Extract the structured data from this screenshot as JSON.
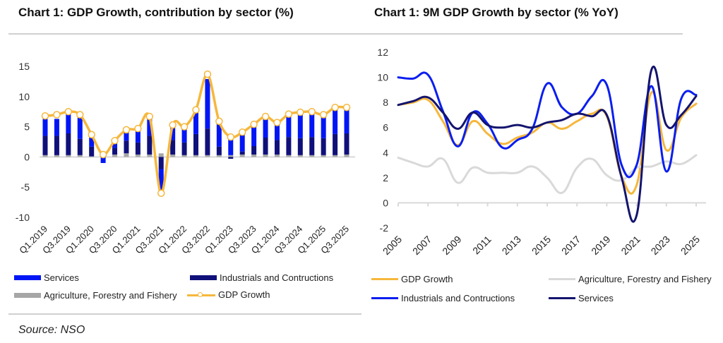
{
  "source": "Source: NSO",
  "chart_data": [
    {
      "type": "bar",
      "stacked": true,
      "title": "Chart 1: GDP Growth, contribution by sector (%)",
      "xlabel": "",
      "ylabel": "",
      "ylim": [
        -10,
        15
      ],
      "yticks": [
        15,
        10,
        5,
        0,
        -5,
        -10
      ],
      "grid": false,
      "legend_position": "bottom",
      "categories": [
        "Q1.2019",
        "Q2.2019",
        "Q3.2019",
        "Q4.2019",
        "Q1.2020",
        "Q2.2020",
        "Q3.2020",
        "Q4.2020",
        "Q1.2021",
        "Q2.2021",
        "Q3.2021",
        "Q4.2021",
        "Q1.2022",
        "Q2.2022",
        "Q3.2022",
        "Q4.2022",
        "Q1.2023",
        "Q2.2023",
        "Q3.2023",
        "Q4.2023",
        "Q1.2024",
        "Q2.2024",
        "Q3.2024",
        "Q4.2024",
        "Q1.2025",
        "Q2.2025",
        "Q3.2025"
      ],
      "tick_labels": [
        "Q1.2019",
        "Q3.2019",
        "Q1.2020",
        "Q3.2020",
        "Q1.2021",
        "Q3.2021",
        "Q1.2022",
        "Q3.2022",
        "Q1.2023",
        "Q3.2023",
        "Q1.2024",
        "Q3.2024",
        "Q1.2025",
        "Q3.2025"
      ],
      "series": [
        {
          "name": "Agriculture, Forestry and Fishery",
          "kind": "bar",
          "color": "#a6a6a6",
          "values": [
            0.3,
            0.3,
            0.3,
            0.3,
            0.1,
            0.2,
            0.4,
            0.6,
            0.4,
            0.4,
            0.6,
            0.4,
            0.3,
            0.3,
            0.3,
            0.3,
            0.3,
            0.4,
            0.4,
            0.4,
            0.4,
            0.3,
            0.3,
            0.3,
            0.3,
            0.3,
            0.4
          ]
        },
        {
          "name": "Industrials and Contructions",
          "kind": "bar",
          "color": "#10107a",
          "values": [
            3.2,
            3.2,
            3.6,
            2.7,
            1.6,
            0.4,
            1.1,
            2.1,
            2.0,
            3.1,
            -2.0,
            2.4,
            2.1,
            3.5,
            4.4,
            1.4,
            -0.3,
            0.5,
            1.4,
            2.8,
            2.4,
            3.0,
            2.8,
            3.0,
            2.8,
            3.5,
            3.5
          ]
        },
        {
          "name": "Services",
          "kind": "bar",
          "color": "#0016f5",
          "values": [
            2.8,
            2.8,
            3.2,
            3.5,
            1.5,
            -1.0,
            1.2,
            1.7,
            2.3,
            3.2,
            -4.0,
            2.5,
            2.6,
            4.0,
            8.2,
            4.0,
            3.4,
            3.3,
            3.4,
            3.7,
            3.2,
            3.5,
            4.1,
            4.0,
            3.6,
            4.1,
            3.9
          ]
        },
        {
          "name": "GDP Growth",
          "kind": "line",
          "color": "#f6b73c",
          "values": [
            6.8,
            7.0,
            7.5,
            7.0,
            3.7,
            0.4,
            2.7,
            4.5,
            4.7,
            6.7,
            -6.0,
            5.3,
            5.0,
            7.8,
            13.7,
            5.9,
            3.3,
            4.1,
            5.4,
            6.7,
            5.7,
            7.1,
            7.4,
            7.5,
            7.0,
            8.2,
            8.2
          ]
        }
      ]
    },
    {
      "type": "line",
      "title": "Chart 1: 9M GDP Growth by sector (% YoY)",
      "xlabel": "",
      "ylabel": "",
      "ylim": [
        -2,
        12
      ],
      "yticks": [
        12,
        10,
        8,
        6,
        4,
        2,
        0,
        -2
      ],
      "grid": false,
      "legend_position": "bottom",
      "x": [
        2005,
        2006,
        2007,
        2008,
        2009,
        2010,
        2011,
        2012,
        2013,
        2014,
        2015,
        2016,
        2017,
        2018,
        2019,
        2020,
        2021,
        2022,
        2023,
        2024,
        2025
      ],
      "tick_labels": [
        "2005",
        "2007",
        "2009",
        "2011",
        "2013",
        "2015",
        "2017",
        "2019",
        "2021",
        "2023",
        "2025"
      ],
      "series": [
        {
          "name": "GDP Growth",
          "color": "#f6b73c",
          "values": [
            7.8,
            8.0,
            8.2,
            6.5,
            4.6,
            6.5,
            5.5,
            4.7,
            5.2,
            5.6,
            6.4,
            5.9,
            6.5,
            7.1,
            6.9,
            2.1,
            1.4,
            8.8,
            4.2,
            6.8,
            7.9
          ]
        },
        {
          "name": "Agriculture, Forestry and Fishery",
          "color": "#d9d9d9",
          "values": [
            3.6,
            3.2,
            2.9,
            3.5,
            1.6,
            2.8,
            2.4,
            2.4,
            2.4,
            2.9,
            2.0,
            0.8,
            2.8,
            3.5,
            2.2,
            1.8,
            2.8,
            2.9,
            3.3,
            3.1,
            3.8
          ]
        },
        {
          "name": "Industrials and Contructions",
          "color": "#0a1ef0",
          "values": [
            10.0,
            9.9,
            10.2,
            7.3,
            4.5,
            7.2,
            6.3,
            4.4,
            5.0,
            5.9,
            9.5,
            7.6,
            7.1,
            8.5,
            9.4,
            3.0,
            3.0,
            9.3,
            2.5,
            8.3,
            8.6
          ]
        },
        {
          "name": "Services",
          "color": "#14146e",
          "values": [
            7.8,
            8.1,
            8.4,
            7.2,
            5.9,
            7.2,
            6.2,
            6.0,
            6.2,
            6.0,
            6.4,
            6.6,
            7.1,
            6.9,
            7.0,
            2.0,
            -1.0,
            10.6,
            6.2,
            7.0,
            8.5
          ]
        }
      ]
    }
  ],
  "charts": [
    {
      "title": "Chart 1: GDP Growth, contribution by sector (%)",
      "legend": [
        "Services",
        "Industrials and Contructions",
        "Agriculture, Forestry and Fishery",
        "GDP Growth"
      ]
    },
    {
      "title": "Chart 1: 9M GDP Growth by sector (% YoY)",
      "legend": [
        "GDP Growth",
        "Agriculture, Forestry and Fishery",
        "Industrials and Contructions",
        "Services"
      ]
    }
  ]
}
